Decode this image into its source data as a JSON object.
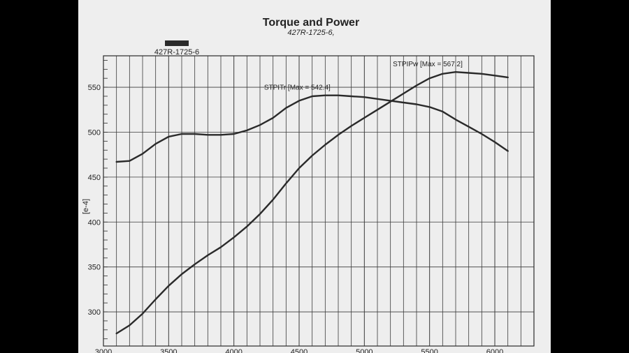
{
  "chart_data": {
    "type": "line",
    "title": "Torque and Power",
    "subtitle": "427R-1725-6,",
    "legend": [
      {
        "label": "427R-1725-6",
        "color": "#2a2a2a"
      }
    ],
    "ylabel": "[e-4]",
    "xlabel": "",
    "xlim": [
      3000,
      6300
    ],
    "ylim": [
      262,
      585
    ],
    "x_ticks": [
      3000,
      3500,
      4000,
      4500,
      5000,
      5500,
      6000
    ],
    "y_ticks": [
      300,
      350,
      400,
      450,
      500,
      550
    ],
    "grid": true,
    "series": [
      {
        "name": "STPITr",
        "annotation": "STPITr [Max = 542.4]",
        "color": "#2a2a2a",
        "x": [
          3100,
          3200,
          3300,
          3400,
          3500,
          3600,
          3700,
          3800,
          3900,
          4000,
          4100,
          4200,
          4300,
          4400,
          4500,
          4600,
          4700,
          4800,
          4900,
          5000,
          5100,
          5200,
          5300,
          5400,
          5500,
          5600,
          5700,
          5800,
          5900,
          6000,
          6100
        ],
        "values": [
          467,
          468,
          476,
          487,
          495,
          498,
          498,
          497,
          497,
          498,
          502,
          508,
          516,
          527,
          535,
          540,
          541,
          541,
          540,
          539,
          537,
          535,
          533,
          531,
          528,
          523,
          514,
          506,
          498,
          489,
          479
        ]
      },
      {
        "name": "STPIPw",
        "annotation": "STPIPw [Max = 567.2]",
        "color": "#2a2a2a",
        "x": [
          3100,
          3200,
          3300,
          3400,
          3500,
          3600,
          3700,
          3800,
          3900,
          4000,
          4100,
          4200,
          4300,
          4400,
          4500,
          4600,
          4700,
          4800,
          4900,
          5000,
          5100,
          5200,
          5300,
          5400,
          5500,
          5600,
          5700,
          5800,
          5900,
          6000,
          6100
        ],
        "values": [
          276,
          285,
          298,
          314,
          329,
          342,
          353,
          363,
          372,
          383,
          395,
          409,
          425,
          443,
          460,
          474,
          486,
          497,
          507,
          516,
          525,
          534,
          543,
          552,
          560,
          565,
          567,
          566,
          565,
          563,
          561
        ]
      }
    ]
  }
}
